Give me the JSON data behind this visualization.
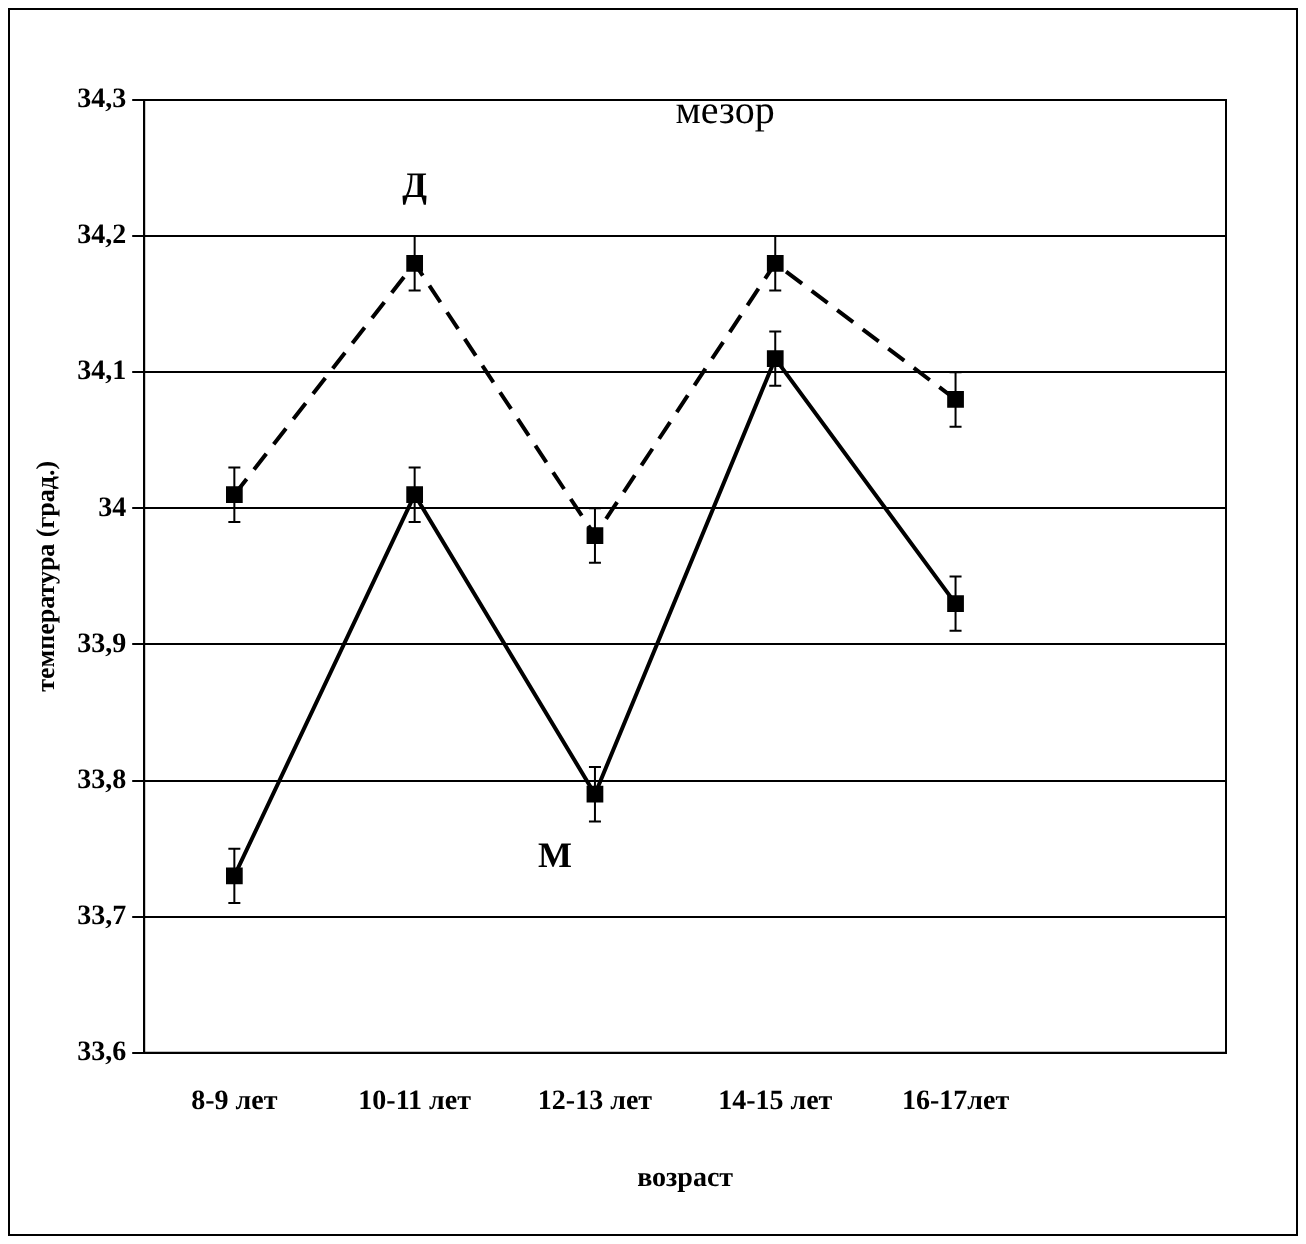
{
  "chart_data": {
    "type": "line",
    "title": "мезор",
    "xlabel": "возраст",
    "ylabel": "температура (град.)",
    "categories": [
      "8-9 лет",
      "10-11 лет",
      "12-13 лет",
      "14-15 лет",
      "16-17лет",
      null
    ],
    "series": [
      {
        "name": "Д",
        "color": "#000000",
        "line_style": "dashed",
        "values": [
          34.01,
          34.18,
          33.98,
          34.18,
          34.08,
          null
        ],
        "errors": [
          0.02,
          0.02,
          0.02,
          0.02,
          0.02,
          null
        ]
      },
      {
        "name": "М",
        "color": "#000000",
        "line_style": "solid",
        "values": [
          33.73,
          34.01,
          33.79,
          34.11,
          33.93,
          null
        ],
        "errors": [
          0.02,
          0.02,
          0.02,
          0.02,
          0.02,
          null
        ]
      }
    ],
    "ylim": [
      33.6,
      34.3
    ],
    "yticks": [
      {
        "value": 33.6,
        "label": "33,6"
      },
      {
        "value": 33.7,
        "label": "33,7"
      },
      {
        "value": 33.8,
        "label": "33,8"
      },
      {
        "value": 33.9,
        "label": "33,9"
      },
      34,
      {
        "value": 34.1,
        "label": "34,1"
      },
      {
        "value": 34.2,
        "label": "34,2"
      },
      {
        "value": 34.3,
        "label": "34,3"
      }
    ],
    "grid": "y",
    "legend": false,
    "marker": "square"
  }
}
